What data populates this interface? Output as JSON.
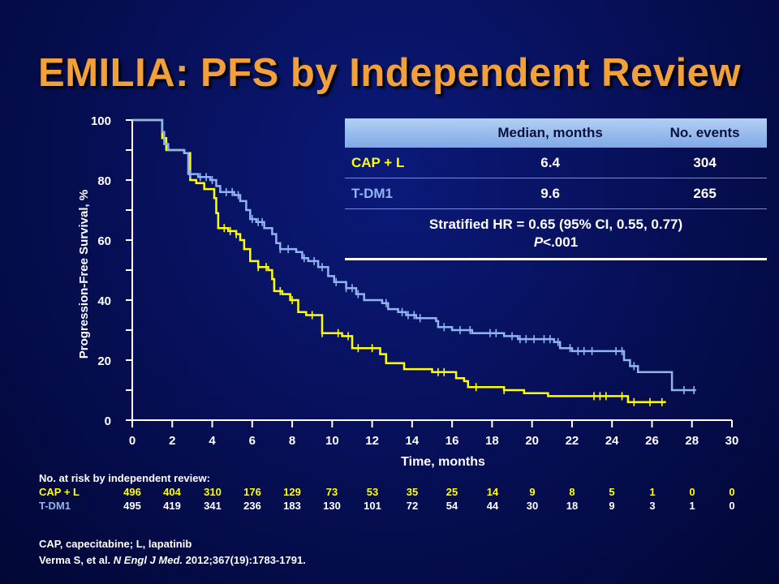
{
  "title": "EMILIA: PFS by Independent Review",
  "colors": {
    "cap_l": "#ffff00",
    "t_dm1": "#8fb4ef",
    "title": "#f2a03a"
  },
  "chart_data": {
    "type": "line",
    "subtype": "kaplan-meier step curves with censor ticks",
    "xlabel": "Time, months",
    "ylabel": "Progression-Free Survival, %",
    "xlim": [
      0,
      30
    ],
    "ylim": [
      0,
      100
    ],
    "x_ticks": [
      "0",
      "2",
      "4",
      "6",
      "8",
      "10",
      "12",
      "14",
      "16",
      "18",
      "20",
      "22",
      "24",
      "26",
      "28",
      "30"
    ],
    "y_ticks": [
      "0",
      "20",
      "40",
      "60",
      "80",
      "100"
    ],
    "series": [
      {
        "name": "CAP + L",
        "color": "#ffff00",
        "points": [
          [
            0,
            100
          ],
          [
            1.3,
            100
          ],
          [
            1.5,
            94
          ],
          [
            1.7,
            90
          ],
          [
            2.6,
            89
          ],
          [
            2.9,
            87
          ],
          [
            2.9,
            80
          ],
          [
            3.2,
            79
          ],
          [
            3.6,
            77
          ],
          [
            3.9,
            77
          ],
          [
            4.1,
            74
          ],
          [
            4.2,
            69
          ],
          [
            4.3,
            64
          ],
          [
            4.8,
            63
          ],
          [
            5.2,
            62
          ],
          [
            5.4,
            60
          ],
          [
            5.6,
            57
          ],
          [
            5.9,
            53
          ],
          [
            6.3,
            51
          ],
          [
            6.8,
            50
          ],
          [
            7.0,
            47
          ],
          [
            7.1,
            43
          ],
          [
            7.5,
            42
          ],
          [
            7.9,
            40
          ],
          [
            8.3,
            36
          ],
          [
            8.7,
            35
          ],
          [
            9.3,
            35
          ],
          [
            9.5,
            29
          ],
          [
            10.0,
            29
          ],
          [
            10.5,
            28
          ],
          [
            11.0,
            24
          ],
          [
            11.5,
            24
          ],
          [
            12.4,
            22
          ],
          [
            12.7,
            19
          ],
          [
            13.6,
            17
          ],
          [
            15.0,
            16
          ],
          [
            16.2,
            14
          ],
          [
            16.6,
            13
          ],
          [
            16.8,
            11
          ],
          [
            18.0,
            11
          ],
          [
            18.6,
            10
          ],
          [
            19.6,
            9
          ],
          [
            20.8,
            8
          ],
          [
            22.0,
            8
          ],
          [
            23.1,
            8
          ],
          [
            24.6,
            8
          ],
          [
            24.8,
            6
          ],
          [
            26.7,
            6
          ]
        ],
        "censor_x": [
          4.6,
          4.9,
          5.2,
          6.3,
          6.7,
          7.4,
          8.0,
          9.0,
          9.5,
          10.3,
          10.8,
          11.3,
          12.0,
          15.3,
          15.6,
          17.2,
          18.6,
          23.1,
          23.4,
          23.7,
          24.5,
          25.1,
          25.9,
          26.5
        ]
      },
      {
        "name": "T-DM1",
        "color": "#8fb4ef",
        "points": [
          [
            0,
            100
          ],
          [
            1.4,
            100
          ],
          [
            1.5,
            96
          ],
          [
            1.6,
            92
          ],
          [
            1.8,
            90
          ],
          [
            2.6,
            89
          ],
          [
            2.8,
            88
          ],
          [
            2.8,
            82
          ],
          [
            3.3,
            81
          ],
          [
            3.9,
            80
          ],
          [
            4.2,
            78
          ],
          [
            4.4,
            76
          ],
          [
            5.1,
            75
          ],
          [
            5.4,
            73
          ],
          [
            5.7,
            70
          ],
          [
            5.9,
            67
          ],
          [
            6.2,
            66
          ],
          [
            6.6,
            64
          ],
          [
            7.0,
            62
          ],
          [
            7.2,
            59
          ],
          [
            7.4,
            57
          ],
          [
            7.9,
            57
          ],
          [
            8.2,
            56
          ],
          [
            8.5,
            54
          ],
          [
            8.8,
            53
          ],
          [
            9.3,
            51
          ],
          [
            9.8,
            48
          ],
          [
            10.1,
            46
          ],
          [
            10.7,
            44
          ],
          [
            11.2,
            42
          ],
          [
            11.6,
            40
          ],
          [
            12.5,
            39
          ],
          [
            12.8,
            37
          ],
          [
            13.3,
            36
          ],
          [
            13.7,
            35
          ],
          [
            14.2,
            34
          ],
          [
            15.2,
            33
          ],
          [
            15.3,
            31
          ],
          [
            16.0,
            30
          ],
          [
            17.0,
            29
          ],
          [
            18.6,
            28
          ],
          [
            19.3,
            27
          ],
          [
            21.1,
            26
          ],
          [
            21.4,
            24
          ],
          [
            22.0,
            23
          ],
          [
            24.6,
            20
          ],
          [
            24.9,
            18
          ],
          [
            25.3,
            16
          ],
          [
            27.0,
            16
          ],
          [
            27.0,
            10
          ],
          [
            28.2,
            10
          ]
        ],
        "censor_x": [
          2.9,
          3.4,
          3.7,
          4.0,
          4.7,
          5.0,
          5.3,
          6.0,
          6.3,
          6.5,
          7.4,
          7.8,
          8.6,
          9.1,
          9.5,
          10.2,
          10.7,
          11.0,
          11.3,
          12.7,
          13.5,
          13.8,
          14.1,
          14.4,
          15.6,
          16.4,
          16.9,
          17.9,
          18.2,
          19.0,
          19.4,
          19.7,
          20.1,
          20.6,
          20.9,
          21.3,
          21.9,
          22.3,
          22.6,
          23.0,
          24.2,
          24.5,
          25.1,
          27.6,
          28.1
        ]
      }
    ]
  },
  "table": {
    "headers": [
      "",
      "Median, months",
      "No. events"
    ],
    "rows": [
      {
        "name": "CAP + L",
        "median": "6.4",
        "events": "304"
      },
      {
        "name": "T-DM1",
        "median": "9.6",
        "events": "265"
      }
    ],
    "footer_line1": "Stratified HR = 0.65 (95% CI, 0.55, 0.77)",
    "footer_p_italic": "P",
    "footer_p_rest": "<.001"
  },
  "risk": {
    "heading": "No. at risk by independent review:",
    "rows": [
      {
        "name": "CAP + L",
        "values": [
          "496",
          "404",
          "310",
          "176",
          "129",
          "73",
          "53",
          "35",
          "25",
          "14",
          "9",
          "8",
          "5",
          "1",
          "0",
          "0"
        ]
      },
      {
        "name": "T-DM1",
        "values": [
          "495",
          "419",
          "341",
          "236",
          "183",
          "130",
          "101",
          "72",
          "54",
          "44",
          "30",
          "18",
          "9",
          "3",
          "1",
          "0"
        ]
      }
    ]
  },
  "footnotes": {
    "line1": "CAP, capecitabine; L, lapatinib",
    "line2_prefix": "Verma S, et al. ",
    "line2_journal": "N Engl J Med.",
    "line2_suffix": " 2012;367(19):1783-1791."
  }
}
